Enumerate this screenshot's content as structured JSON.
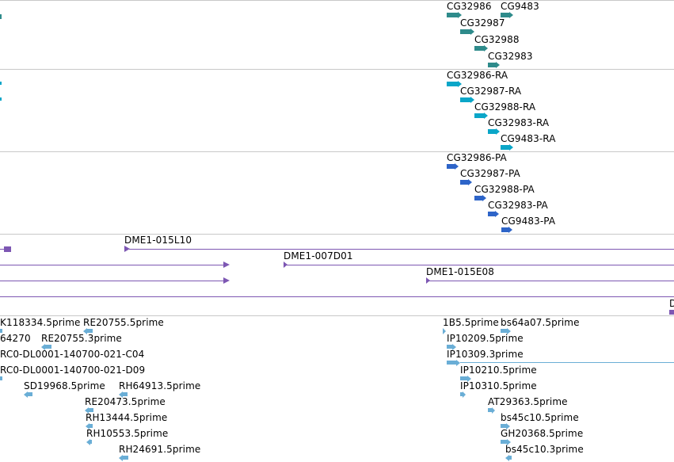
{
  "colors": {
    "gene": "#2e8b8b",
    "transcript": "#0aa6c8",
    "protein": "#2d64c8",
    "clone": "#7d57b3",
    "est": "#6aaed6",
    "separator": "#c8c8c8"
  },
  "tracks": {
    "genes": {
      "items": [
        {
          "label": "CG32986"
        },
        {
          "label": "CG9483"
        },
        {
          "label": "CG32987"
        },
        {
          "label": "CG32988"
        },
        {
          "label": "CG32983"
        }
      ]
    },
    "transcripts": {
      "items": [
        {
          "label": "CG32986-RA"
        },
        {
          "label": "CG32987-RA"
        },
        {
          "label": "CG32988-RA"
        },
        {
          "label": "CG32983-RA"
        },
        {
          "label": "CG9483-RA"
        }
      ]
    },
    "proteins": {
      "items": [
        {
          "label": "CG32986-PA"
        },
        {
          "label": "CG32987-PA"
        },
        {
          "label": "CG32988-PA"
        },
        {
          "label": "CG32983-PA"
        },
        {
          "label": "CG9483-PA"
        }
      ]
    },
    "clones": {
      "items": [
        {
          "label": "DME1-015L10"
        },
        {
          "label": "DME1-007D01"
        },
        {
          "label": "DME1-015E08"
        },
        {
          "label": "D"
        }
      ]
    },
    "ests": {
      "items": [
        {
          "label": "K118334.5prime"
        },
        {
          "label": "RE20755.5prime"
        },
        {
          "label": "64270"
        },
        {
          "label": "RE20755.3prime"
        },
        {
          "label": "RC0-DL0001-140700-021-C04"
        },
        {
          "label": "RC0-DL0001-140700-021-D09"
        },
        {
          "label": "SD19968.5prime"
        },
        {
          "label": "RH64913.5prime"
        },
        {
          "label": "RE20473.5prime"
        },
        {
          "label": "RH13444.5prime"
        },
        {
          "label": "RH10553.5prime"
        },
        {
          "label": "RH24691.5prime"
        },
        {
          "label": "1B5.5prime"
        },
        {
          "label": "bs64a07.5prime"
        },
        {
          "label": "IP10209.5prime"
        },
        {
          "label": "IP10309.3prime"
        },
        {
          "label": "IP10210.5prime"
        },
        {
          "label": "IP10310.5prime"
        },
        {
          "label": "AT29363.5prime"
        },
        {
          "label": "bs45c10.5prime"
        },
        {
          "label": "GH20368.5prime"
        },
        {
          "label": "bs45c10.3prime"
        }
      ]
    }
  }
}
